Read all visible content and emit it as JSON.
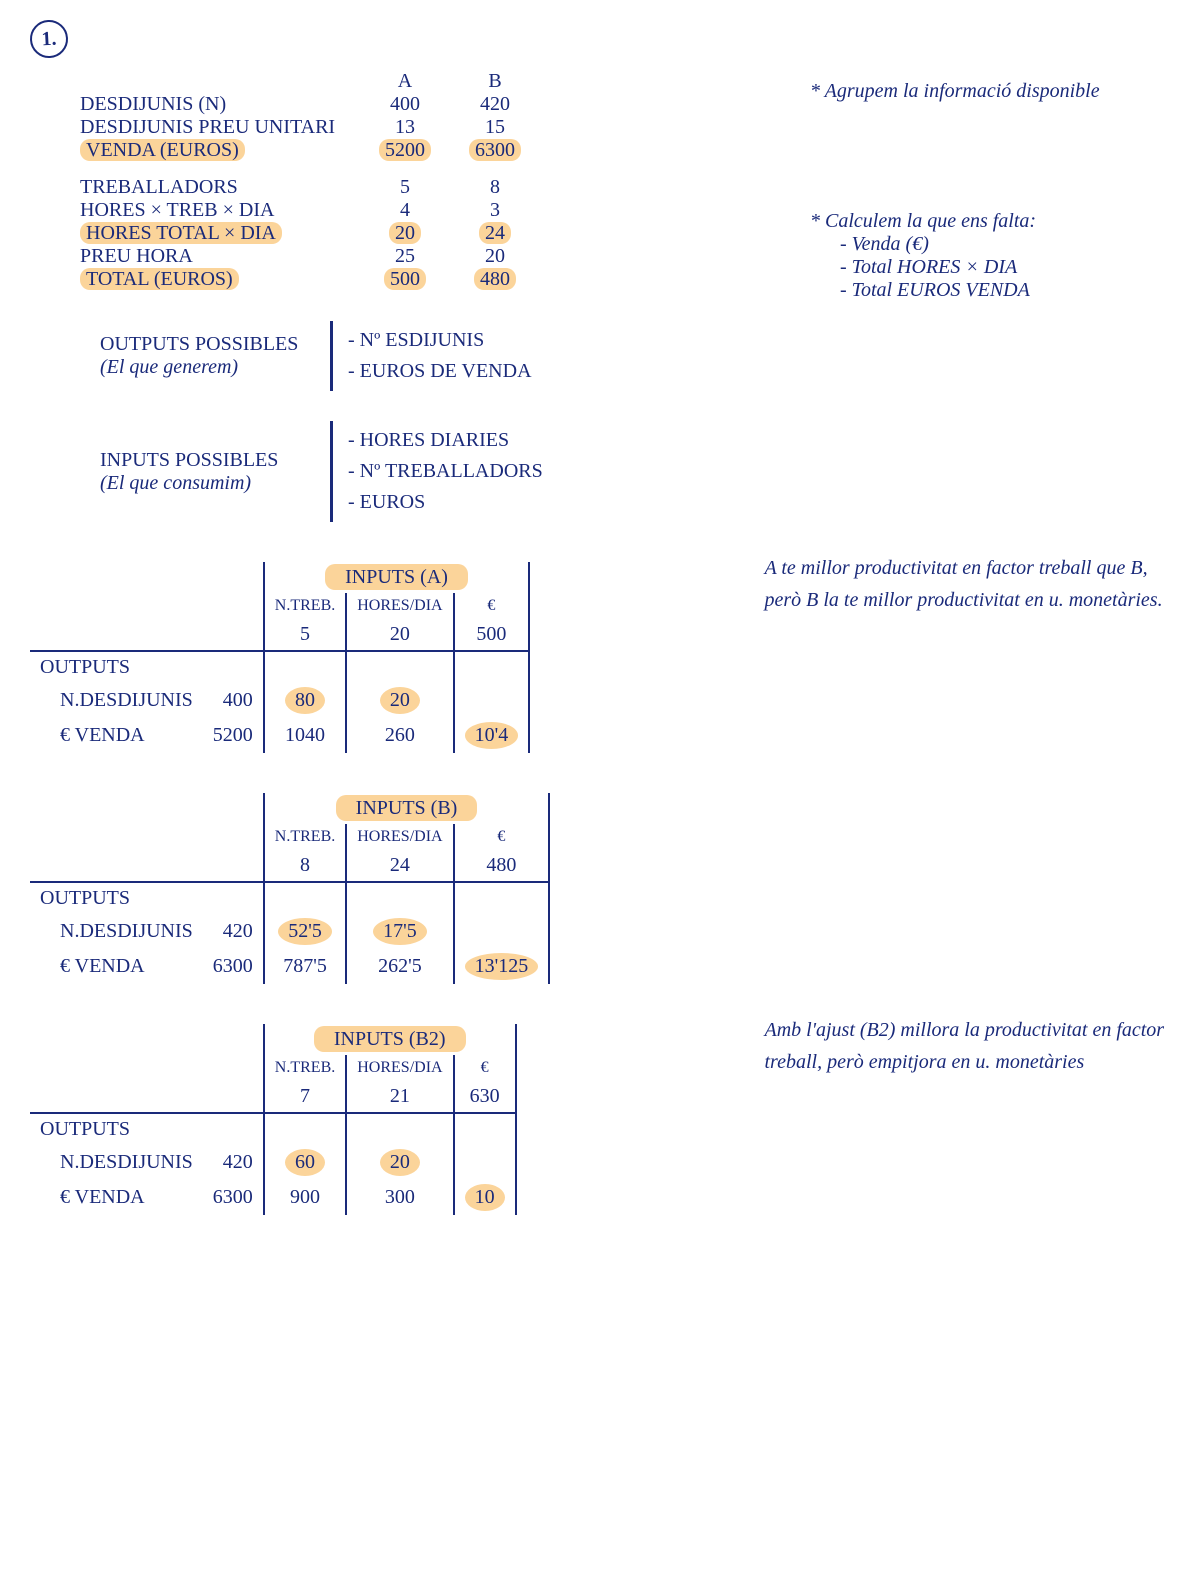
{
  "exercise_number": "1.",
  "top_table": {
    "headers": {
      "colA": "A",
      "colB": "B"
    },
    "rows": [
      {
        "label": "DESDIJUNIS (N)",
        "a": "400",
        "b": "420",
        "hl": false
      },
      {
        "label": "DESDIJUNIS PREU UNITARI",
        "a": "13",
        "b": "15",
        "hl": false
      },
      {
        "label": "VENDA (EUROS)",
        "a": "5200",
        "b": "6300",
        "hl": true
      }
    ],
    "rows2": [
      {
        "label": "TREBALLADORS",
        "a": "5",
        "b": "8",
        "hl": false
      },
      {
        "label": "HORES × TREB × DIA",
        "a": "4",
        "b": "3",
        "hl": false
      },
      {
        "label": "HORES TOTAL × DIA",
        "a": "20",
        "b": "24",
        "hl": true
      },
      {
        "label": "PREU HORA",
        "a": "25",
        "b": "20",
        "hl": false
      },
      {
        "label": "TOTAL (EUROS)",
        "a": "500",
        "b": "480",
        "hl": true
      }
    ]
  },
  "right_notes": {
    "note1": "* Agrupem la informació disponible",
    "note2_title": "* Calculem la que ens falta:",
    "note2_items": [
      "- Venda (€)",
      "- Total HORES × DIA",
      "- Total EUROS VENDA"
    ]
  },
  "outputs_block": {
    "title": "OUTPUTS POSSIBLES",
    "subtitle": "(El que generem)",
    "items": [
      "- Nº ESDIJUNIS",
      "- EUROS DE VENDA"
    ]
  },
  "inputs_block": {
    "title": "INPUTS POSSIBLES",
    "subtitle": "(El que consumim)",
    "items": [
      "- HORES DIARIES",
      "- Nº TREBALLADORS",
      "- EUROS"
    ]
  },
  "prod_tables": [
    {
      "title": "INPUTS (A)",
      "input_headers": [
        "N.TREB.",
        "HORES/DIA",
        "€"
      ],
      "input_values": [
        "5",
        "20",
        "500"
      ],
      "output_label": "OUTPUTS",
      "rows": [
        {
          "name": "N.DESDIJUNIS",
          "val": "400",
          "cells": [
            "80",
            "20",
            ""
          ],
          "hl": [
            true,
            true,
            false
          ]
        },
        {
          "name": "€ VENDA",
          "val": "5200",
          "cells": [
            "1040",
            "260",
            "10'4"
          ],
          "hl": [
            false,
            false,
            true
          ]
        }
      ],
      "side": "A te millor productivitat en factor treball que B, però B la te millor productivitat en u. monetàries."
    },
    {
      "title": "INPUTS (B)",
      "input_headers": [
        "N.TREB.",
        "HORES/DIA",
        "€"
      ],
      "input_values": [
        "8",
        "24",
        "480"
      ],
      "output_label": "OUTPUTS",
      "rows": [
        {
          "name": "N.DESDIJUNIS",
          "val": "420",
          "cells": [
            "52'5",
            "17'5",
            ""
          ],
          "hl": [
            true,
            true,
            false
          ]
        },
        {
          "name": "€ VENDA",
          "val": "6300",
          "cells": [
            "787'5",
            "262'5",
            "13'125"
          ],
          "hl": [
            false,
            false,
            true
          ]
        }
      ],
      "side": ""
    },
    {
      "title": "INPUTS (B2)",
      "input_headers": [
        "N.TREB.",
        "HORES/DIA",
        "€"
      ],
      "input_values": [
        "7",
        "21",
        "630"
      ],
      "output_label": "OUTPUTS",
      "rows": [
        {
          "name": "N.DESDIJUNIS",
          "val": "420",
          "cells": [
            "60",
            "20",
            ""
          ],
          "hl": [
            true,
            true,
            false
          ]
        },
        {
          "name": "€ VENDA",
          "val": "6300",
          "cells": [
            "900",
            "300",
            "10"
          ],
          "hl": [
            false,
            false,
            true
          ]
        }
      ],
      "side": "Amb l'ajust (B2) millora la productivitat en factor treball, però empitjora en u. monetàries"
    }
  ]
}
